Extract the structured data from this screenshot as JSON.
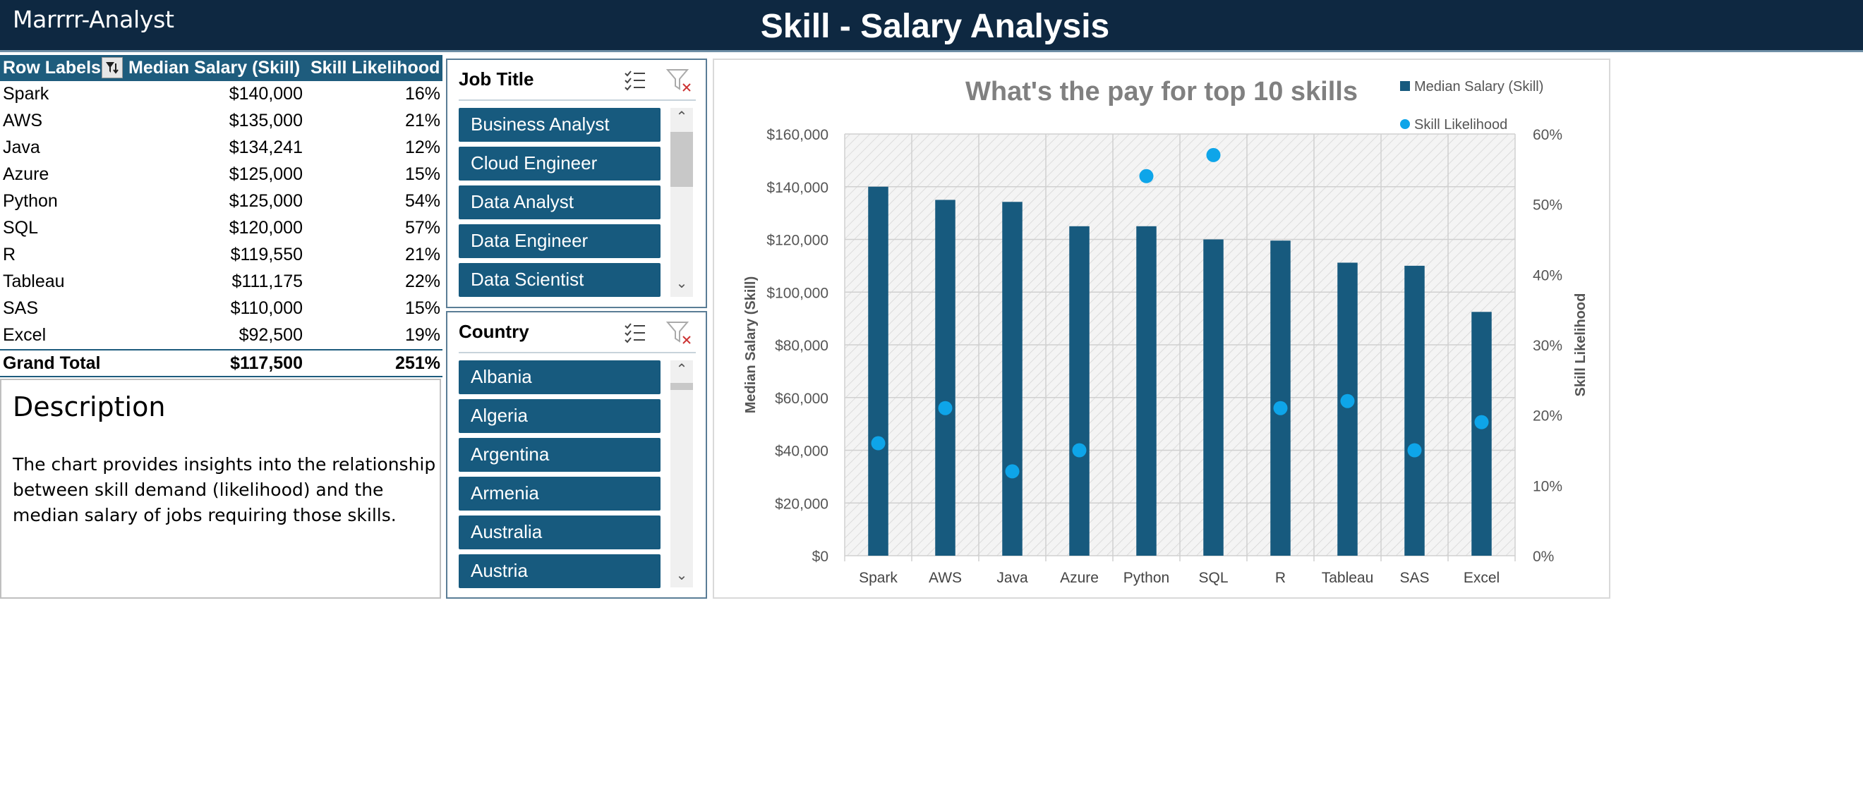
{
  "header": {
    "brand": "Marrrr-Analyst",
    "title": "Skill - Salary Analysis"
  },
  "pivot": {
    "headers": [
      "Row Labels",
      "Median Salary (Skill)",
      "Skill Likelihood"
    ],
    "rows": [
      {
        "label": "Spark",
        "salary": "$140,000",
        "likelihood": "16%"
      },
      {
        "label": "AWS",
        "salary": "$135,000",
        "likelihood": "21%"
      },
      {
        "label": "Java",
        "salary": "$134,241",
        "likelihood": "12%"
      },
      {
        "label": "Azure",
        "salary": "$125,000",
        "likelihood": "15%"
      },
      {
        "label": "Python",
        "salary": "$125,000",
        "likelihood": "54%"
      },
      {
        "label": "SQL",
        "salary": "$120,000",
        "likelihood": "57%"
      },
      {
        "label": "R",
        "salary": "$119,550",
        "likelihood": "21%"
      },
      {
        "label": "Tableau",
        "salary": "$111,175",
        "likelihood": "22%"
      },
      {
        "label": "SAS",
        "salary": "$110,000",
        "likelihood": "15%"
      },
      {
        "label": "Excel",
        "salary": "$92,500",
        "likelihood": "19%"
      }
    ],
    "total": {
      "label": "Grand Total",
      "salary": "$117,500",
      "likelihood": "251%"
    }
  },
  "description": {
    "title": "Description",
    "body": "The chart provides insights into the relationship between skill demand (likelihood) and the median salary of jobs requiring those skills."
  },
  "slicers": {
    "job_title": {
      "title": "Job Title",
      "items": [
        "Business Analyst",
        "Cloud Engineer",
        "Data Analyst",
        "Data Engineer",
        "Data Scientist"
      ]
    },
    "country": {
      "title": "Country",
      "items": [
        "Albania",
        "Algeria",
        "Argentina",
        "Armenia",
        "Australia",
        "Austria"
      ]
    }
  },
  "icons": [
    "filter-dropdown-icon",
    "multi-select-icon",
    "clear-filter-icon",
    "scroll-up-icon",
    "scroll-down-icon"
  ],
  "colors": {
    "header_bg": "#0e2841",
    "bar": "#175a7e",
    "dot": "#0ea5e9",
    "title_gray": "#808080"
  },
  "chart_data": {
    "type": "bar",
    "title": "What's the pay for top 10 skills",
    "categories": [
      "Spark",
      "AWS",
      "Java",
      "Azure",
      "Python",
      "SQL",
      "R",
      "Tableau",
      "SAS",
      "Excel"
    ],
    "series": [
      {
        "name": "Median Salary (Skill)",
        "type": "bar",
        "axis": "left",
        "values": [
          140000,
          135000,
          134241,
          125000,
          125000,
          120000,
          119550,
          111175,
          110000,
          92500
        ]
      },
      {
        "name": "Skill Likelihood",
        "type": "scatter",
        "axis": "right",
        "values": [
          0.16,
          0.21,
          0.12,
          0.15,
          0.54,
          0.57,
          0.21,
          0.22,
          0.15,
          0.19
        ]
      }
    ],
    "ylabel": "Median Salary (Skill)",
    "y2label": "Skill Likelihood",
    "ylim": [
      0,
      160000
    ],
    "y2lim": [
      0,
      0.6
    ],
    "yticks": [
      "$0",
      "$20,000",
      "$40,000",
      "$60,000",
      "$80,000",
      "$100,000",
      "$120,000",
      "$140,000",
      "$160,000"
    ],
    "y2ticks": [
      "0%",
      "10%",
      "20%",
      "30%",
      "40%",
      "50%",
      "60%"
    ],
    "grid": true,
    "legend": "top-right"
  }
}
